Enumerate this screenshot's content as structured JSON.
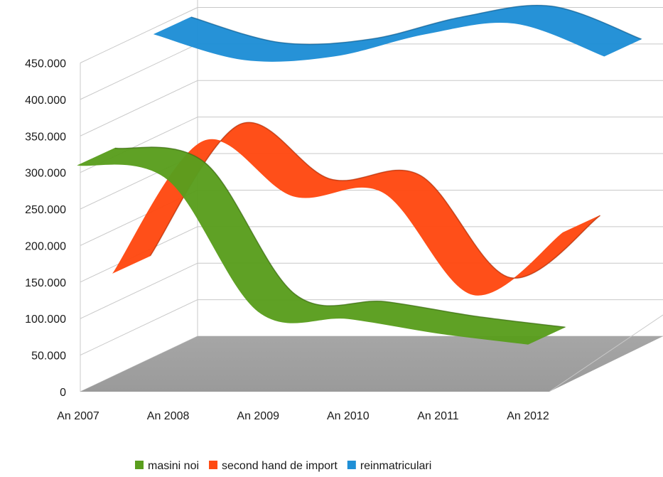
{
  "chart_data": {
    "type": "line",
    "style": "3d-ribbon",
    "title": "",
    "xlabel": "",
    "ylabel": "",
    "categories": [
      "An 2007",
      "An 2008",
      "An 2009",
      "An 2010",
      "An 2011",
      "An 2012"
    ],
    "ylim": [
      0,
      450000
    ],
    "yticks": [
      0,
      50000,
      100000,
      150000,
      200000,
      250000,
      300000,
      350000,
      400000,
      450000
    ],
    "ytick_labels": [
      "0",
      "50.000",
      "100.000",
      "150.000",
      "200.000",
      "250.000",
      "300.000",
      "350.000",
      "400.000",
      "450.000"
    ],
    "grid": true,
    "legend_position": "bottom",
    "series": [
      {
        "name": "masini noi",
        "color": "#5a9e1e",
        "values": [
          310000,
          290000,
          110000,
          100000,
          80000,
          65000
        ]
      },
      {
        "name": "second hand de import",
        "color": "#ff4a12",
        "values": [
          140000,
          320000,
          245000,
          250000,
          110000,
          195000
        ]
      },
      {
        "name": "reinmatriculari",
        "color": "#1f8fd6",
        "values": [
          440000,
          405000,
          410000,
          440000,
          455000,
          410000
        ]
      }
    ]
  }
}
